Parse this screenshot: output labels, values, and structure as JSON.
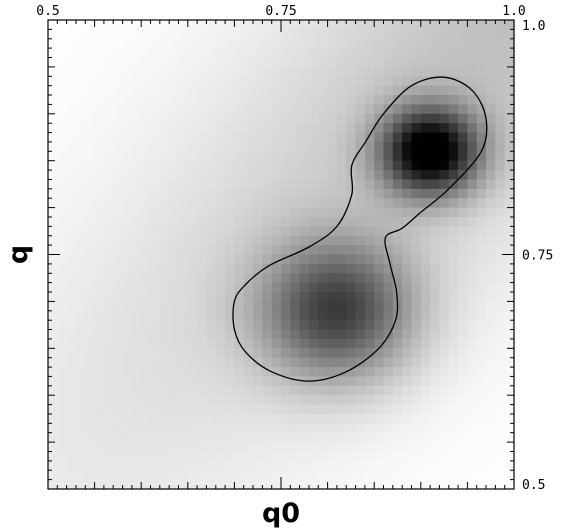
{
  "chart_data": {
    "type": "heatmap",
    "xlabel": "q0",
    "ylabel": "q",
    "xlim": [
      0.5,
      1.0
    ],
    "ylim": [
      0.5,
      1.0
    ],
    "x_ticks": [
      {
        "value": 0.5,
        "label": "0.5"
      },
      {
        "value": 0.75,
        "label": "0.75"
      },
      {
        "value": 1.0,
        "label": "1.0"
      }
    ],
    "y_ticks": [
      {
        "value": 1.0,
        "label": "1.0"
      },
      {
        "value": 0.75,
        "label": "0.75"
      },
      {
        "value": 0.5,
        "label": "0.5"
      }
    ],
    "tick_positions": [
      "top",
      "right"
    ],
    "colormap": "grayscale, white = low density, black = high density",
    "density_peaks": [
      {
        "x": 0.91,
        "y": 0.86,
        "sx": 0.036,
        "sy": 0.032,
        "amplitude": 1.0
      },
      {
        "x": 0.81,
        "y": 0.69,
        "sx": 0.055,
        "sy": 0.05,
        "amplitude": 0.64
      }
    ],
    "background_ridge": {
      "from": [
        0.5,
        0.5
      ],
      "to": [
        1.0,
        1.0
      ],
      "width": 0.12,
      "amplitude": 0.2
    },
    "contour": [
      [
        0.86,
        0.9
      ],
      [
        0.89,
        0.93
      ],
      [
        0.925,
        0.939
      ],
      [
        0.955,
        0.925
      ],
      [
        0.97,
        0.895
      ],
      [
        0.965,
        0.86
      ],
      [
        0.93,
        0.82
      ],
      [
        0.9,
        0.795
      ],
      [
        0.88,
        0.778
      ],
      [
        0.862,
        0.768
      ],
      [
        0.867,
        0.74
      ],
      [
        0.874,
        0.71
      ],
      [
        0.873,
        0.68
      ],
      [
        0.855,
        0.65
      ],
      [
        0.82,
        0.625
      ],
      [
        0.78,
        0.615
      ],
      [
        0.74,
        0.625
      ],
      [
        0.712,
        0.646
      ],
      [
        0.7,
        0.67
      ],
      [
        0.7,
        0.7
      ],
      [
        0.712,
        0.718
      ],
      [
        0.737,
        0.738
      ],
      [
        0.78,
        0.758
      ],
      [
        0.81,
        0.78
      ],
      [
        0.826,
        0.814
      ],
      [
        0.826,
        0.845
      ],
      [
        0.842,
        0.872
      ]
    ]
  }
}
